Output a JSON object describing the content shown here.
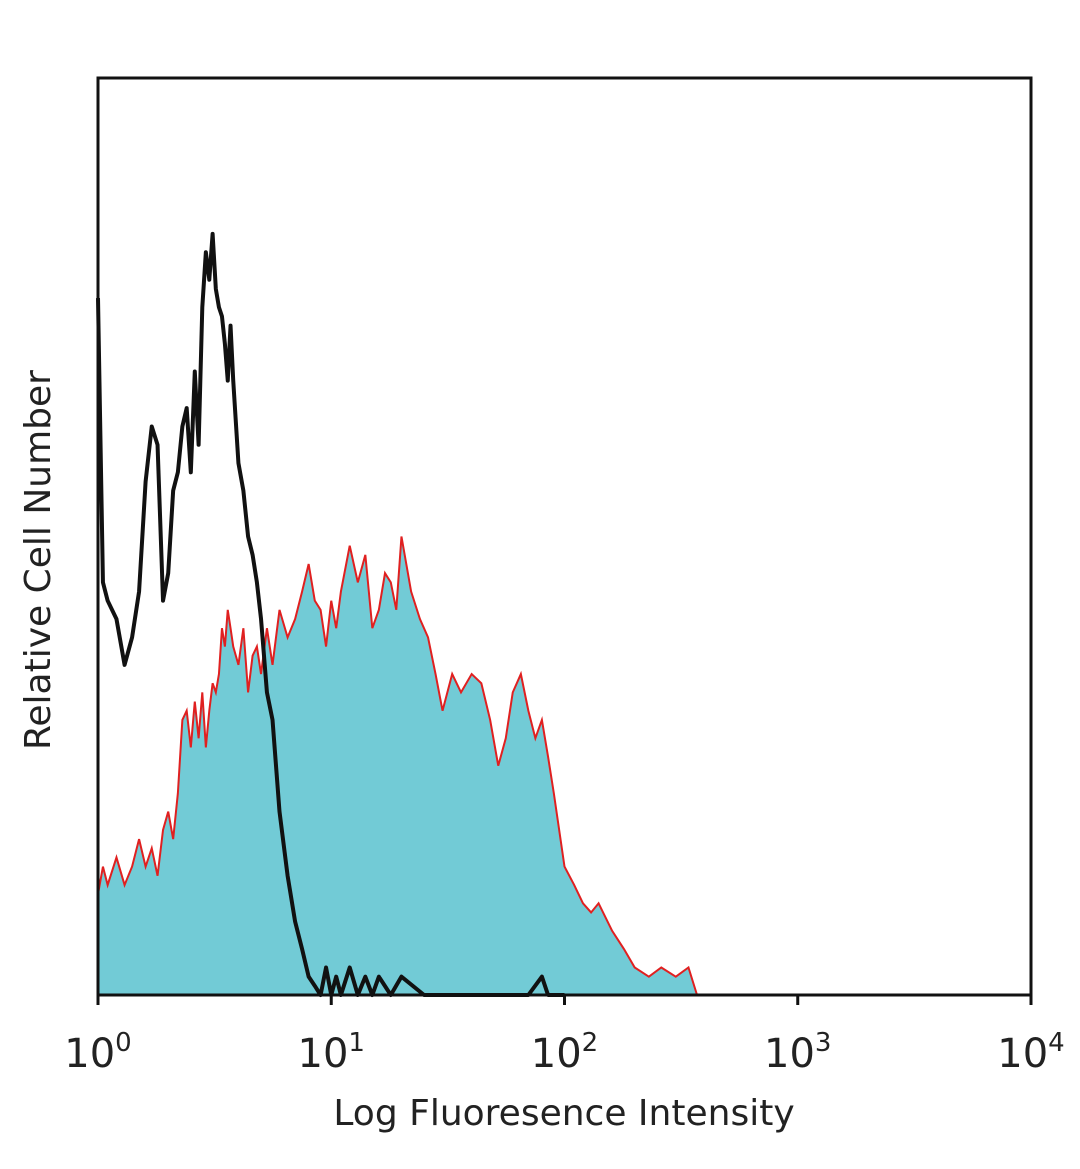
{
  "chart_data": {
    "type": "area",
    "title": "",
    "xlabel": "Log Fluoresence Intensity",
    "ylabel": "Relative Cell Number",
    "x_scale": "log",
    "xlim": [
      1,
      10000
    ],
    "ylim": [
      0,
      1
    ],
    "grid": false,
    "legend": "none",
    "x_ticks": [
      {
        "base": "10",
        "exp": "0"
      },
      {
        "base": "10",
        "exp": "1"
      },
      {
        "base": "10",
        "exp": "2"
      },
      {
        "base": "10",
        "exp": "3"
      },
      {
        "base": "10",
        "exp": "4"
      }
    ],
    "series": [
      {
        "style": "outline",
        "color": "#111111",
        "x": [
          1.0,
          1.05,
          1.1,
          1.2,
          1.3,
          1.4,
          1.5,
          1.6,
          1.7,
          1.8,
          1.9,
          2.0,
          2.1,
          2.2,
          2.3,
          2.4,
          2.5,
          2.6,
          2.7,
          2.8,
          2.9,
          3.0,
          3.1,
          3.2,
          3.3,
          3.4,
          3.5,
          3.6,
          3.7,
          3.8,
          4.0,
          4.2,
          4.4,
          4.6,
          4.8,
          5.0,
          5.3,
          5.6,
          6.0,
          6.5,
          7.0,
          7.5,
          8.0,
          8.5,
          9.0,
          9.5,
          10.0,
          10.5,
          11.0,
          12.0,
          13.0,
          14.0,
          15.0,
          16.0,
          18.0,
          20.0,
          25.0,
          30.0,
          40.0,
          50.0,
          60.0,
          70.0,
          80.0,
          85.0,
          90.0,
          100.0
        ],
        "y": [
          0.76,
          0.45,
          0.43,
          0.41,
          0.36,
          0.39,
          0.44,
          0.56,
          0.62,
          0.6,
          0.43,
          0.46,
          0.55,
          0.57,
          0.62,
          0.64,
          0.57,
          0.68,
          0.6,
          0.75,
          0.81,
          0.78,
          0.83,
          0.77,
          0.75,
          0.74,
          0.71,
          0.67,
          0.73,
          0.67,
          0.58,
          0.55,
          0.5,
          0.48,
          0.45,
          0.41,
          0.33,
          0.3,
          0.2,
          0.13,
          0.08,
          0.05,
          0.02,
          0.01,
          0.0,
          0.03,
          0.0,
          0.02,
          0.0,
          0.03,
          0.0,
          0.02,
          0.0,
          0.02,
          0.0,
          0.02,
          0.0,
          0.0,
          0.0,
          0.0,
          0.0,
          0.0,
          0.02,
          0.0,
          0.0,
          0.0
        ]
      },
      {
        "style": "filled",
        "fill": "#72cbd6",
        "stroke": "#e02020",
        "x": [
          1.0,
          1.05,
          1.1,
          1.2,
          1.3,
          1.4,
          1.5,
          1.6,
          1.7,
          1.8,
          1.9,
          2.0,
          2.1,
          2.2,
          2.3,
          2.4,
          2.5,
          2.6,
          2.7,
          2.8,
          2.9,
          3.0,
          3.1,
          3.2,
          3.3,
          3.4,
          3.5,
          3.6,
          3.7,
          3.8,
          4.0,
          4.2,
          4.4,
          4.6,
          4.8,
          5.0,
          5.3,
          5.6,
          6.0,
          6.5,
          7.0,
          7.5,
          8.0,
          8.5,
          9.0,
          9.5,
          10.0,
          10.5,
          11.0,
          12.0,
          13.0,
          14.0,
          15.0,
          16.0,
          17.0,
          18.0,
          19.0,
          20.0,
          22.0,
          24.0,
          26.0,
          28.0,
          30.0,
          33.0,
          36.0,
          40.0,
          44.0,
          48.0,
          52.0,
          56.0,
          60.0,
          65.0,
          70.0,
          75.0,
          80.0,
          85.0,
          90.0,
          100.0,
          110.0,
          120.0,
          130.0,
          140.0,
          160.0,
          180.0,
          200.0,
          230.0,
          260.0,
          300.0,
          340.0,
          370.0
        ],
        "y": [
          0.11,
          0.14,
          0.12,
          0.15,
          0.12,
          0.14,
          0.17,
          0.14,
          0.16,
          0.13,
          0.18,
          0.2,
          0.17,
          0.22,
          0.3,
          0.31,
          0.27,
          0.32,
          0.28,
          0.33,
          0.27,
          0.31,
          0.34,
          0.33,
          0.35,
          0.4,
          0.38,
          0.42,
          0.4,
          0.38,
          0.36,
          0.4,
          0.33,
          0.37,
          0.38,
          0.35,
          0.4,
          0.36,
          0.42,
          0.39,
          0.41,
          0.44,
          0.47,
          0.43,
          0.42,
          0.38,
          0.43,
          0.4,
          0.44,
          0.49,
          0.45,
          0.48,
          0.4,
          0.42,
          0.46,
          0.45,
          0.42,
          0.5,
          0.44,
          0.41,
          0.39,
          0.35,
          0.31,
          0.35,
          0.33,
          0.35,
          0.34,
          0.3,
          0.25,
          0.28,
          0.33,
          0.35,
          0.31,
          0.28,
          0.3,
          0.26,
          0.22,
          0.14,
          0.12,
          0.1,
          0.09,
          0.1,
          0.07,
          0.05,
          0.03,
          0.02,
          0.03,
          0.02,
          0.03,
          0.0
        ]
      }
    ]
  }
}
